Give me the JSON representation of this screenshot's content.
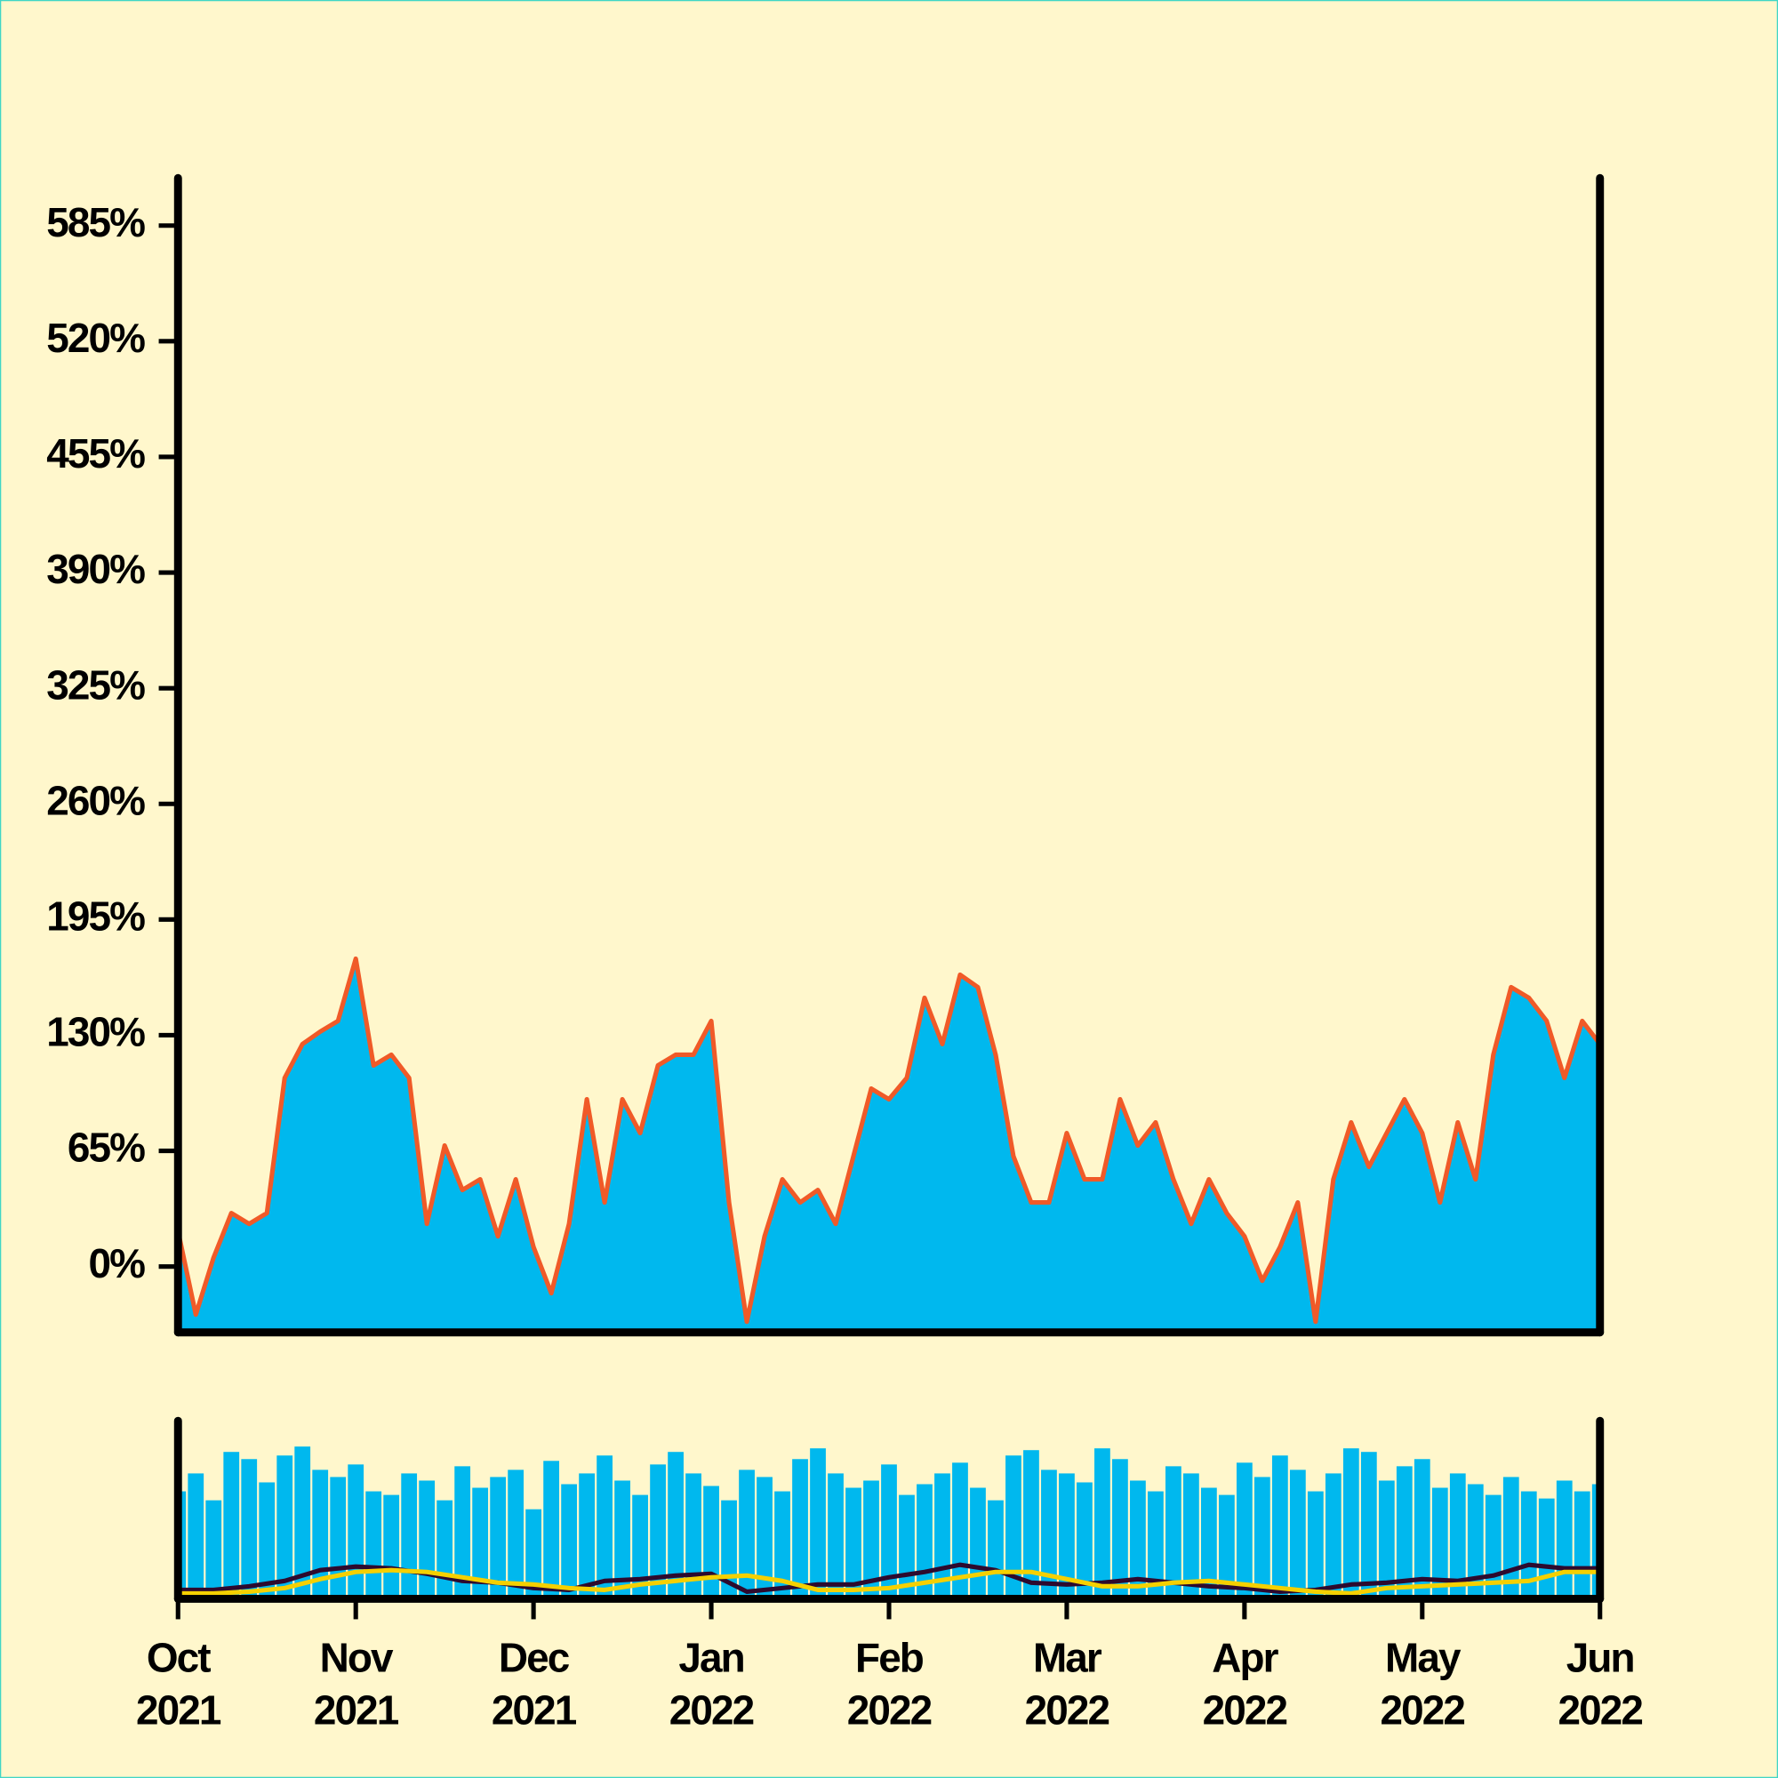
{
  "chart_data": [
    {
      "type": "area",
      "color": "#00b8ee",
      "line_color": "#f05a28",
      "xlim": [
        0,
        8
      ],
      "ylim": [
        -37,
        613
      ],
      "yticks": [
        {
          "value": 0,
          "label": "0%"
        },
        {
          "value": 65,
          "label": "65%"
        },
        {
          "value": 130,
          "label": "130%"
        },
        {
          "value": 195,
          "label": "195%"
        },
        {
          "value": 260,
          "label": "260%"
        },
        {
          "value": 325,
          "label": "325%"
        },
        {
          "value": 390,
          "label": "390%"
        },
        {
          "value": 455,
          "label": "455%"
        },
        {
          "value": 520,
          "label": "520%"
        },
        {
          "value": 585,
          "label": "585%"
        }
      ],
      "x": [
        0,
        0.1,
        0.2,
        0.3,
        0.4,
        0.5,
        0.6,
        0.7,
        0.8,
        0.9,
        1,
        1.1,
        1.2,
        1.3,
        1.4,
        1.5,
        1.6,
        1.7,
        1.8,
        1.9,
        2,
        2.1,
        2.2,
        2.3,
        2.4,
        2.5,
        2.6,
        2.7,
        2.8,
        2.9,
        3,
        3.1,
        3.2,
        3.3,
        3.4,
        3.5,
        3.6,
        3.7,
        3.8,
        3.9,
        4,
        4.1,
        4.2,
        4.3,
        4.4,
        4.5,
        4.6,
        4.7,
        4.8,
        4.9,
        5,
        5.1,
        5.2,
        5.3,
        5.4,
        5.5,
        5.6,
        5.7,
        5.8,
        5.9,
        6,
        6.1,
        6.2,
        6.3,
        6.4,
        6.5,
        6.6,
        6.7,
        6.8,
        6.9,
        7,
        7.1,
        7.2,
        7.3,
        7.4,
        7.5,
        7.6,
        7.7,
        7.8,
        7.9,
        8
      ],
      "values": [
        20,
        -27,
        5,
        30,
        24,
        30,
        106,
        125,
        132,
        138,
        173,
        113,
        119,
        106,
        24,
        68,
        43,
        49,
        17,
        49,
        11,
        -15,
        24,
        94,
        36,
        94,
        75,
        113,
        119,
        119,
        138,
        36,
        -31,
        17,
        49,
        36,
        43,
        24,
        62,
        100,
        94,
        106,
        151,
        125,
        164,
        157,
        119,
        62,
        36,
        36,
        75,
        49,
        49,
        94,
        68,
        81,
        49,
        24,
        49,
        30,
        17,
        -8,
        11,
        36,
        -31,
        49,
        81,
        56,
        75,
        94,
        75,
        36,
        81,
        49,
        119,
        157,
        151,
        138,
        106,
        138,
        125
      ]
    },
    {
      "type": "bar",
      "color": "#00b8ee",
      "xlim": [
        0,
        8
      ],
      "ylim": [
        0,
        100
      ],
      "xticks": [
        {
          "value": 0,
          "label": "Oct 2021"
        },
        {
          "value": 1,
          "label": "Nov 2021"
        },
        {
          "value": 2,
          "label": "Dec 2021"
        },
        {
          "value": 3,
          "label": "Jan 2022"
        },
        {
          "value": 4,
          "label": "Feb 2022"
        },
        {
          "value": 5,
          "label": "Mar 2022"
        },
        {
          "value": 6,
          "label": "Apr 2022"
        },
        {
          "value": 7,
          "label": "May 2022"
        },
        {
          "value": 8,
          "label": "Jun 2022"
        }
      ],
      "x": [
        0,
        0.1,
        0.2,
        0.3,
        0.4,
        0.5,
        0.6,
        0.7,
        0.8,
        0.9,
        1,
        1.1,
        1.2,
        1.3,
        1.4,
        1.5,
        1.6,
        1.7,
        1.8,
        1.9,
        2,
        2.1,
        2.2,
        2.3,
        2.4,
        2.5,
        2.6,
        2.7,
        2.8,
        2.9,
        3,
        3.1,
        3.2,
        3.3,
        3.4,
        3.5,
        3.6,
        3.7,
        3.8,
        3.9,
        4,
        4.1,
        4.2,
        4.3,
        4.4,
        4.5,
        4.6,
        4.7,
        4.8,
        4.9,
        5,
        5.1,
        5.2,
        5.3,
        5.4,
        5.5,
        5.6,
        5.7,
        5.8,
        5.9,
        6,
        6.1,
        6.2,
        6.3,
        6.4,
        6.5,
        6.6,
        6.7,
        6.8,
        6.9,
        7,
        7.1,
        7.2,
        7.3,
        7.4,
        7.5,
        7.6,
        7.7,
        7.8,
        7.9,
        8
      ],
      "values": [
        60,
        70,
        55,
        82,
        78,
        65,
        80,
        85,
        72,
        68,
        75,
        60,
        58,
        70,
        66,
        55,
        74,
        62,
        68,
        72,
        50,
        77,
        64,
        70,
        80,
        66,
        58,
        75,
        82,
        70,
        63,
        55,
        72,
        68,
        60,
        78,
        84,
        70,
        62,
        66,
        75,
        58,
        64,
        70,
        76,
        62,
        55,
        80,
        83,
        72,
        70,
        65,
        84,
        78,
        66,
        60,
        74,
        70,
        62,
        58,
        76,
        68,
        80,
        72,
        60,
        70,
        84,
        82,
        66,
        74,
        78,
        62,
        70,
        64,
        58,
        68,
        60,
        56,
        66,
        60,
        64
      ],
      "lines": [
        {
          "color": "#2d0a2e",
          "x": [
            0,
            0.2,
            0.4,
            0.6,
            0.8,
            1,
            1.2,
            1.4,
            1.6,
            1.8,
            2,
            2.2,
            2.4,
            2.6,
            2.8,
            3,
            3.2,
            3.4,
            3.6,
            3.8,
            4,
            4.2,
            4.4,
            4.6,
            4.8,
            5,
            5.2,
            5.4,
            5.6,
            5.8,
            6,
            6.2,
            6.4,
            6.6,
            6.8,
            7,
            7.2,
            7.4,
            7.6,
            7.8,
            8
          ],
          "values": [
            5,
            5,
            7,
            10,
            16,
            18,
            17,
            14,
            10,
            9,
            6,
            5,
            10,
            11,
            13,
            14,
            4,
            6,
            8,
            8,
            12,
            15,
            19,
            16,
            9,
            8,
            9,
            11,
            9,
            7,
            6,
            4,
            5,
            8,
            9,
            11,
            10,
            13,
            19,
            17,
            17
          ]
        },
        {
          "color": "#f5d000",
          "x": [
            0,
            0.2,
            0.4,
            0.6,
            0.8,
            1,
            1.2,
            1.4,
            1.6,
            1.8,
            2,
            2.2,
            2.4,
            2.6,
            2.8,
            3,
            3.2,
            3.4,
            3.6,
            3.8,
            4,
            4.2,
            4.4,
            4.6,
            4.8,
            5,
            5.2,
            5.4,
            5.6,
            5.8,
            6,
            6.2,
            6.4,
            6.6,
            6.8,
            7,
            7.2,
            7.4,
            7.6,
            7.8,
            8
          ],
          "values": [
            3,
            3,
            4,
            6,
            11,
            15,
            16,
            15,
            12,
            9,
            8,
            6,
            5,
            8,
            10,
            12,
            13,
            10,
            5,
            5,
            6,
            9,
            12,
            15,
            15,
            11,
            7,
            7,
            9,
            10,
            8,
            6,
            4,
            3,
            6,
            7,
            8,
            9,
            10,
            15,
            15
          ]
        }
      ]
    }
  ]
}
